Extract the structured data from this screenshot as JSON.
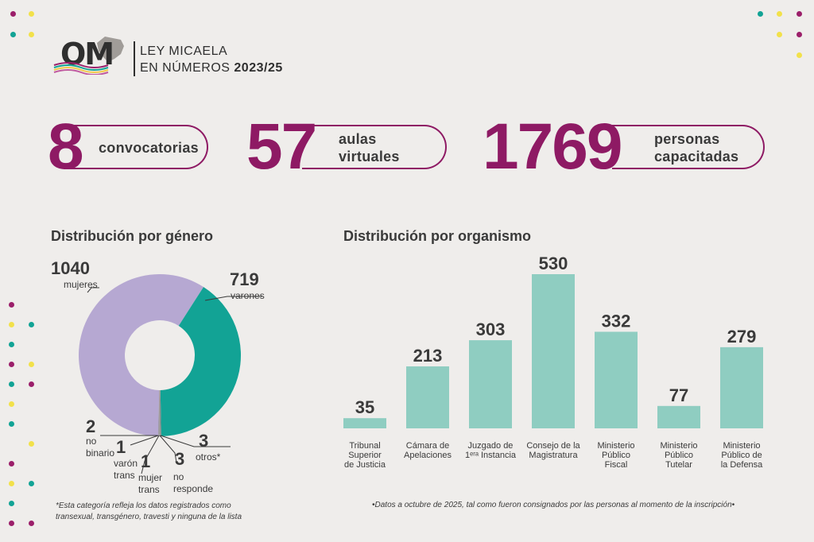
{
  "header": {
    "logo_text": "OM",
    "title_line1": "LEY MICAELA",
    "title_line2_prefix": "EN NÚMEROS",
    "title_line2_year": "2023/25"
  },
  "stats": [
    {
      "value": "8",
      "label": "convocatorias"
    },
    {
      "value": "57",
      "label_line1": "aulas",
      "label_line2": "virtuales"
    },
    {
      "value": "1769",
      "label_line1": "personas",
      "label_line2": "capacitadas"
    }
  ],
  "colors": {
    "accent": "#8e1a64",
    "lavender": "#b6a8d2",
    "teal": "#12a395",
    "bar": "#8fcdc1",
    "background": "#efedeb",
    "text": "#2f2f2f"
  },
  "chart_data": [
    {
      "type": "pie",
      "title": "Distribución por género",
      "slices": [
        {
          "value": 1040,
          "label": "1040",
          "desc": "mujeres"
        },
        {
          "value": 719,
          "label": "719",
          "desc": "varones"
        },
        {
          "value": 3,
          "label": "3",
          "desc": "otros*"
        },
        {
          "value": 3,
          "label": "3",
          "desc_line1": "no",
          "desc_line2": "responde"
        },
        {
          "value": 1,
          "label": "1",
          "desc_line1": "mujer",
          "desc_line2": "trans"
        },
        {
          "value": 1,
          "label": "1",
          "desc_line1": "varón",
          "desc_line2": "trans"
        },
        {
          "value": 2,
          "label": "2",
          "desc_line1": "no",
          "desc_line2": "binario"
        }
      ],
      "footnote_line1": "*Esta categoría refleja los datos registrados como",
      "footnote_line2": "transexual, transgénero, travesti y ninguna de la lista"
    },
    {
      "type": "bar",
      "title": "Distribución por organismo",
      "categories": [
        [
          "Tribunal",
          "Superior",
          "de Justicia"
        ],
        [
          "Cámara de",
          "Apelaciones"
        ],
        [
          "Juzgado de",
          "1ᵉʳᵃ Instancia"
        ],
        [
          "Consejo de la",
          "Magistratura"
        ],
        [
          "Ministerio",
          "Público",
          "Fiscal"
        ],
        [
          "Ministerio",
          "Público",
          "Tutelar"
        ],
        [
          "Ministerio",
          "Público de",
          "la Defensa"
        ]
      ],
      "values": [
        35,
        213,
        303,
        530,
        332,
        77,
        279
      ],
      "ylim": [
        0,
        530
      ],
      "footnote": "•Datos a octubre de 2025, tal como fueron consignados por las personas al momento de la inscripción•"
    }
  ]
}
